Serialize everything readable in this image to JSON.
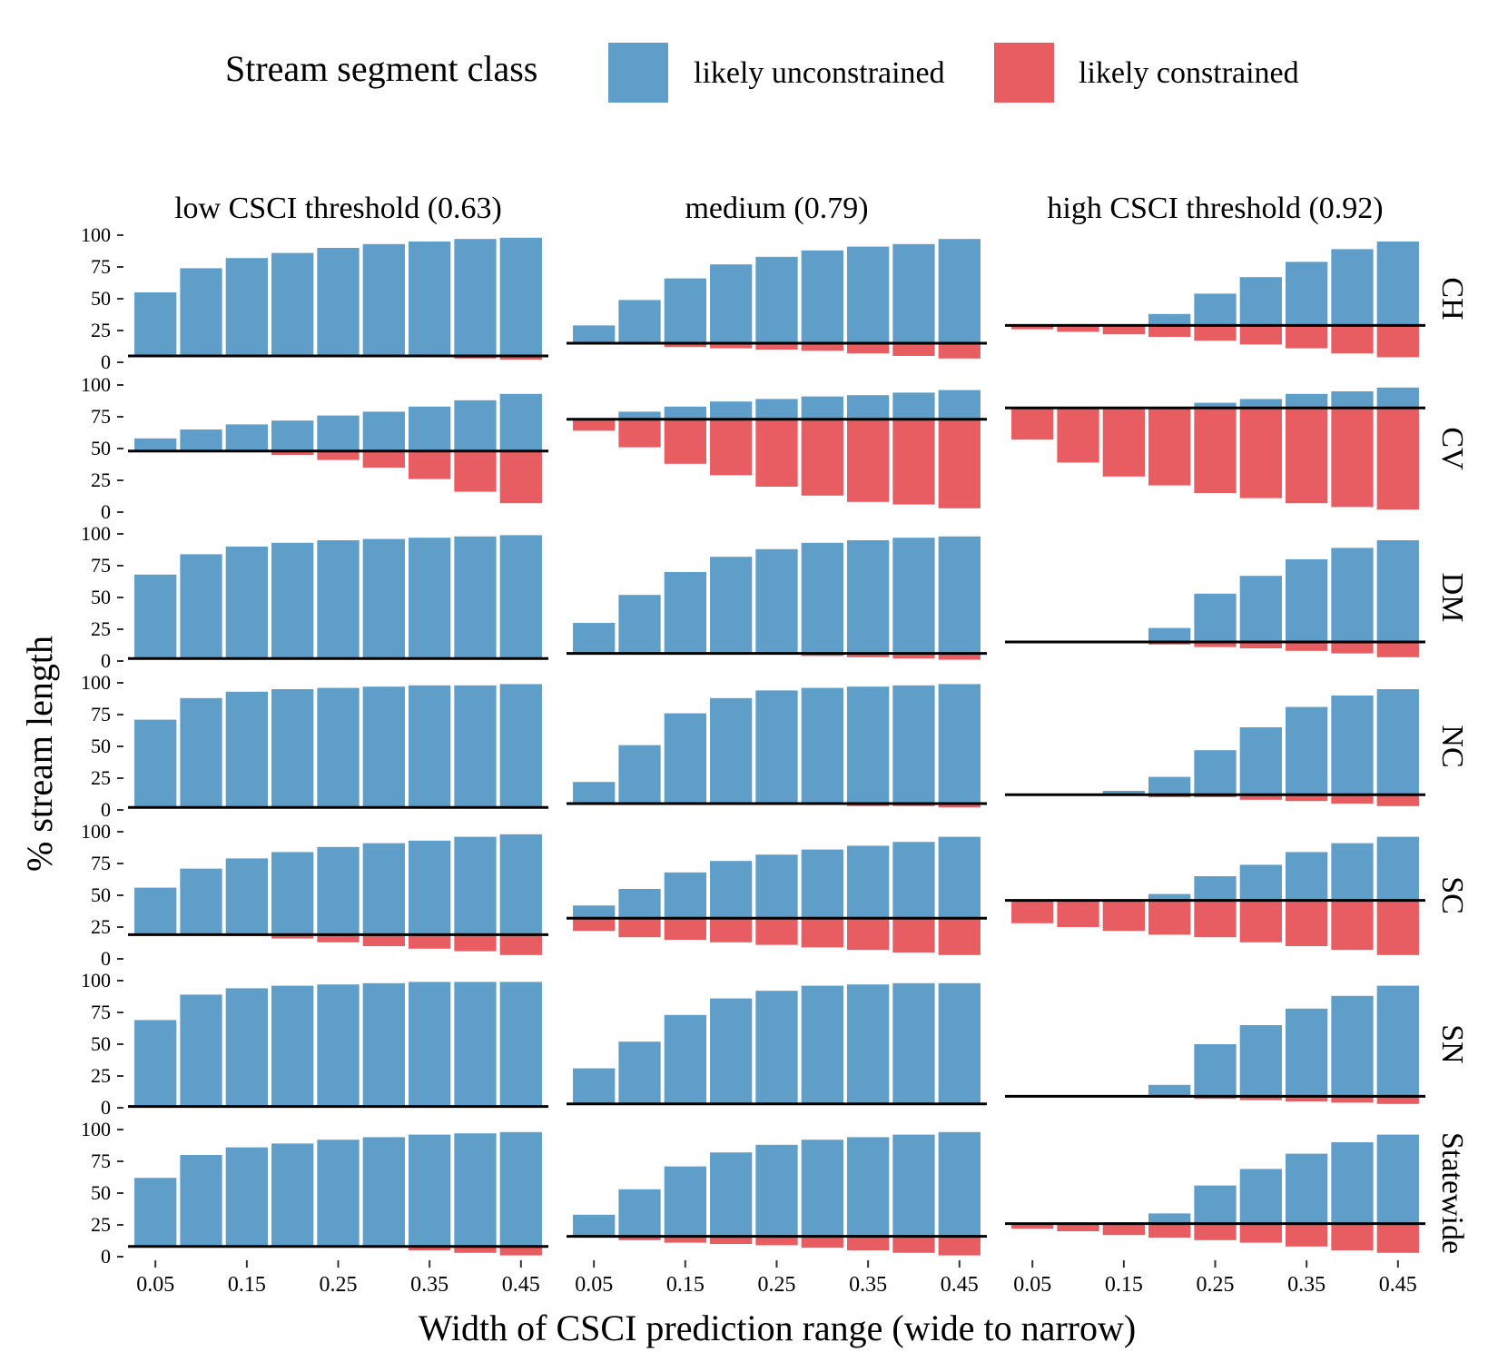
{
  "legend": {
    "title": "Stream segment class",
    "items": [
      {
        "label": "likely unconstrained",
        "color": "#5f9ec9"
      },
      {
        "label": "likely constrained",
        "color": "#e85d62"
      }
    ]
  },
  "chart_data": {
    "type": "bar",
    "xlabel": "Width of CSCI prediction range (wide to narrow)",
    "ylabel": "% stream length",
    "x": [
      0.05,
      0.1,
      0.15,
      0.2,
      0.25,
      0.3,
      0.35,
      0.4,
      0.45
    ],
    "x_tick_labels": [
      "0.05",
      "0.15",
      "0.25",
      "0.35",
      "0.45"
    ],
    "y_ticks": [
      "0",
      "25",
      "50",
      "75",
      "100"
    ],
    "ylim": [
      0,
      100
    ],
    "facet_columns": [
      "low CSCI threshold (0.63)",
      "medium (0.79)",
      "high CSCI threshold (0.92)"
    ],
    "facet_rows": [
      "CH",
      "CV",
      "DM",
      "NC",
      "SC",
      "SN",
      "Statewide"
    ],
    "series": [
      {
        "name": "likely unconstrained",
        "color": "#5f9ec9"
      },
      {
        "name": "likely constrained",
        "color": "#e85d62"
      }
    ],
    "reference_line_color": "#000000",
    "panels": [
      [
        {
          "line": 5,
          "up": [
            55,
            74,
            82,
            86,
            90,
            93,
            95,
            97,
            98
          ],
          "down": [
            5,
            5,
            5,
            5,
            5,
            5,
            5,
            3,
            2
          ]
        },
        {
          "line": 48,
          "up": [
            58,
            65,
            69,
            72,
            76,
            79,
            83,
            88,
            93
          ],
          "down": [
            48,
            48,
            48,
            45,
            41,
            35,
            26,
            16,
            7
          ]
        },
        {
          "line": 2,
          "up": [
            68,
            84,
            90,
            93,
            95,
            96,
            97,
            98,
            99
          ],
          "down": [
            2,
            2,
            2,
            2,
            2,
            2,
            2,
            2,
            2
          ]
        },
        {
          "line": 2,
          "up": [
            71,
            88,
            93,
            95,
            96,
            97,
            98,
            98,
            99
          ],
          "down": [
            2,
            2,
            2,
            2,
            2,
            2,
            2,
            2,
            2
          ]
        },
        {
          "line": 19,
          "up": [
            56,
            71,
            79,
            84,
            88,
            91,
            93,
            96,
            98
          ],
          "down": [
            19,
            19,
            18,
            16,
            13,
            10,
            8,
            6,
            3
          ]
        },
        {
          "line": 1,
          "up": [
            69,
            89,
            94,
            96,
            97,
            98,
            99,
            99,
            99
          ],
          "down": [
            1,
            1,
            1,
            1,
            1,
            1,
            1,
            1,
            1
          ]
        },
        {
          "line": 8,
          "up": [
            62,
            80,
            86,
            89,
            92,
            94,
            96,
            97,
            98
          ],
          "down": [
            8,
            8,
            8,
            8,
            8,
            7,
            5,
            3,
            1
          ]
        }
      ],
      [
        {
          "line": 15,
          "up": [
            29,
            49,
            66,
            77,
            83,
            88,
            91,
            93,
            97
          ],
          "down": [
            15,
            15,
            12,
            11,
            10,
            9,
            7,
            5,
            3
          ]
        },
        {
          "line": 73,
          "up": [
            73,
            79,
            83,
            87,
            89,
            91,
            92,
            94,
            96
          ],
          "down": [
            64,
            51,
            38,
            29,
            20,
            13,
            8,
            6,
            3
          ]
        },
        {
          "line": 6,
          "up": [
            30,
            52,
            70,
            82,
            88,
            93,
            95,
            97,
            98
          ],
          "down": [
            6,
            6,
            6,
            6,
            5,
            4,
            3,
            2,
            1
          ]
        },
        {
          "line": 5,
          "up": [
            22,
            51,
            76,
            88,
            94,
            96,
            97,
            98,
            99
          ],
          "down": [
            5,
            5,
            5,
            5,
            5,
            4,
            3,
            3,
            2
          ]
        },
        {
          "line": 32,
          "up": [
            42,
            55,
            68,
            77,
            82,
            86,
            89,
            92,
            96
          ],
          "down": [
            22,
            17,
            15,
            13,
            11,
            9,
            7,
            5,
            3
          ]
        },
        {
          "line": 3,
          "up": [
            31,
            52,
            73,
            86,
            92,
            96,
            97,
            98,
            98
          ],
          "down": [
            3,
            3,
            3,
            3,
            3,
            3,
            3,
            3,
            3
          ]
        },
        {
          "line": 16,
          "up": [
            33,
            53,
            71,
            82,
            88,
            92,
            94,
            96,
            98
          ],
          "down": [
            16,
            13,
            11,
            10,
            9,
            7,
            5,
            3,
            1
          ]
        }
      ],
      [
        {
          "line": 29,
          "up": [
            29,
            29,
            30,
            38,
            54,
            67,
            79,
            89,
            95
          ],
          "down": [
            26,
            24,
            22,
            20,
            17,
            14,
            11,
            7,
            4
          ]
        },
        {
          "line": 82,
          "up": [
            82,
            82,
            82,
            82,
            86,
            89,
            93,
            95,
            98
          ],
          "down": [
            57,
            39,
            28,
            21,
            15,
            11,
            7,
            4,
            2
          ]
        },
        {
          "line": 15,
          "up": [
            15,
            15,
            16,
            26,
            53,
            67,
            80,
            89,
            95
          ],
          "down": [
            15,
            15,
            14,
            13,
            11,
            10,
            8,
            6,
            3
          ]
        },
        {
          "line": 12,
          "up": [
            12,
            12,
            15,
            26,
            47,
            65,
            81,
            90,
            95
          ],
          "down": [
            12,
            12,
            12,
            10,
            10,
            8,
            7,
            5,
            3
          ]
        },
        {
          "line": 46,
          "up": [
            46,
            46,
            46,
            51,
            65,
            74,
            84,
            91,
            96
          ],
          "down": [
            28,
            25,
            22,
            19,
            17,
            13,
            10,
            7,
            3
          ]
        },
        {
          "line": 9,
          "up": [
            9,
            9,
            9,
            18,
            50,
            65,
            78,
            88,
            96
          ],
          "down": [
            9,
            9,
            9,
            8,
            7,
            6,
            5,
            4,
            3
          ]
        },
        {
          "line": 26,
          "up": [
            26,
            26,
            27,
            34,
            56,
            69,
            81,
            90,
            96
          ],
          "down": [
            22,
            20,
            17,
            15,
            13,
            11,
            8,
            5,
            3
          ]
        }
      ]
    ]
  }
}
